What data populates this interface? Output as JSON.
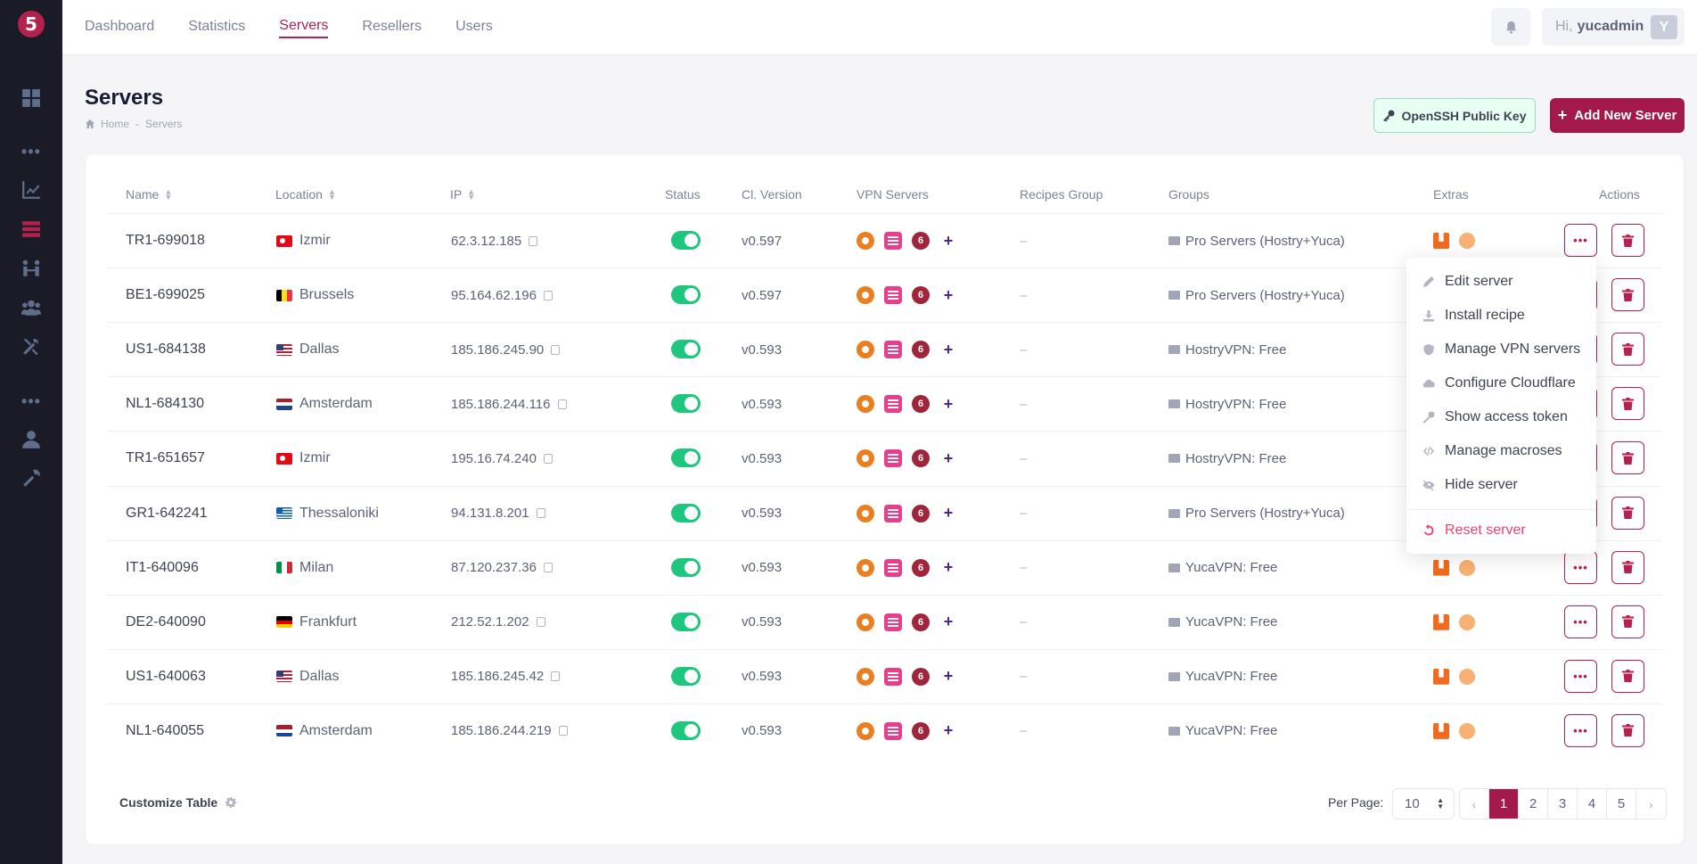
{
  "app": {
    "logo_alt": "5"
  },
  "sidebar": {
    "icons": [
      "dashboard-icon",
      "more-icon",
      "statistics-icon",
      "servers-icon",
      "resellers-icon",
      "users-icon",
      "tools-icon",
      "more-icon",
      "account-icon",
      "settings-icon"
    ]
  },
  "nav": {
    "items": [
      {
        "label": "Dashboard",
        "active": false
      },
      {
        "label": "Statistics",
        "active": false
      },
      {
        "label": "Servers",
        "active": true
      },
      {
        "label": "Resellers",
        "active": false
      },
      {
        "label": "Users",
        "active": false
      }
    ]
  },
  "user": {
    "greeting": "Hi,",
    "name": "yucadmin",
    "initial": "Y"
  },
  "page": {
    "title": "Servers",
    "breadcrumb": {
      "home": "Home",
      "sep": "-",
      "current": "Servers"
    },
    "ssh_button": "OpenSSH Public Key",
    "add_button": "Add New Server"
  },
  "table": {
    "columns": [
      "Name",
      "Location",
      "IP",
      "Status",
      "Cl. Version",
      "VPN Servers",
      "Recipes Group",
      "Groups",
      "Extras",
      "Actions"
    ],
    "rows": [
      {
        "name": "TR1-699018",
        "location": "Izmir",
        "flag": "tr",
        "ip": "62.3.12.185",
        "version": "v0.597",
        "recipes": "–",
        "group": "Pro Servers (Hostry+Yuca)"
      },
      {
        "name": "BE1-699025",
        "location": "Brussels",
        "flag": "be",
        "ip": "95.164.62.196",
        "version": "v0.597",
        "recipes": "–",
        "group": "Pro Servers (Hostry+Yuca)"
      },
      {
        "name": "US1-684138",
        "location": "Dallas",
        "flag": "us",
        "ip": "185.186.245.90",
        "version": "v0.593",
        "recipes": "–",
        "group": "HostryVPN: Free"
      },
      {
        "name": "NL1-684130",
        "location": "Amsterdam",
        "flag": "nl",
        "ip": "185.186.244.116",
        "version": "v0.593",
        "recipes": "–",
        "group": "HostryVPN: Free"
      },
      {
        "name": "TR1-651657",
        "location": "Izmir",
        "flag": "tr",
        "ip": "195.16.74.240",
        "version": "v0.593",
        "recipes": "–",
        "group": "HostryVPN: Free"
      },
      {
        "name": "GR1-642241",
        "location": "Thessaloniki",
        "flag": "gr",
        "ip": "94.131.8.201",
        "version": "v0.593",
        "recipes": "–",
        "group": "Pro Servers (Hostry+Yuca)"
      },
      {
        "name": "IT1-640096",
        "location": "Milan",
        "flag": "it",
        "ip": "87.120.237.36",
        "version": "v0.593",
        "recipes": "–",
        "group": "YucaVPN: Free"
      },
      {
        "name": "DE2-640090",
        "location": "Frankfurt",
        "flag": "de",
        "ip": "212.52.1.202",
        "version": "v0.593",
        "recipes": "–",
        "group": "YucaVPN: Free"
      },
      {
        "name": "US1-640063",
        "location": "Dallas",
        "flag": "us",
        "ip": "185.186.245.42",
        "version": "v0.593",
        "recipes": "–",
        "group": "YucaVPN: Free"
      },
      {
        "name": "NL1-640055",
        "location": "Amsterdam",
        "flag": "nl",
        "ip": "185.186.244.219",
        "version": "v0.593",
        "recipes": "–",
        "group": "YucaVPN: Free"
      }
    ]
  },
  "menu": {
    "items": [
      {
        "label": "Edit server",
        "icon": "pencil-icon"
      },
      {
        "label": "Install recipe",
        "icon": "download-icon"
      },
      {
        "label": "Manage VPN servers",
        "icon": "shield-icon"
      },
      {
        "label": "Configure Cloudflare",
        "icon": "cloud-icon"
      },
      {
        "label": "Show access token",
        "icon": "key-icon"
      },
      {
        "label": "Manage macroses",
        "icon": "code-icon"
      },
      {
        "label": "Hide server",
        "icon": "eye-slash-icon"
      }
    ],
    "danger": {
      "label": "Reset server",
      "icon": "reset-icon"
    }
  },
  "footer": {
    "customize": "Customize Table",
    "per_page_label": "Per Page:",
    "per_page_value": "10",
    "pages": [
      "1",
      "2",
      "3",
      "4",
      "5"
    ],
    "current_page": "1",
    "prev": "‹",
    "next": "›"
  },
  "colors": {
    "brand": "#a2194a",
    "toggle_on": "#1fc77e",
    "sidebar": "#1b1b28"
  }
}
